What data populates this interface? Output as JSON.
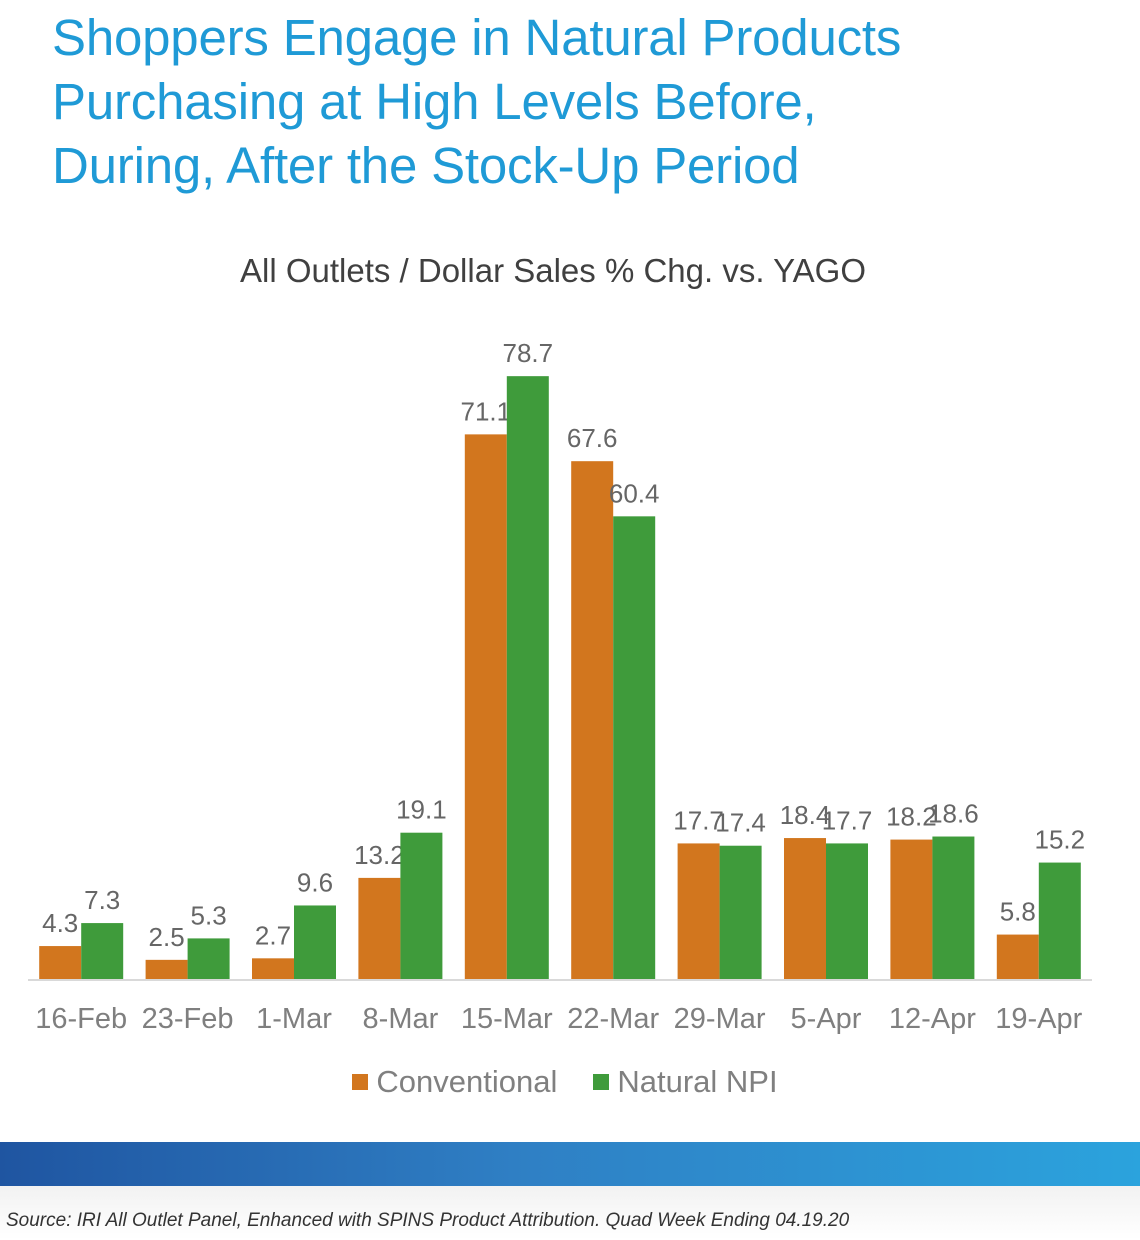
{
  "title_lines": [
    "Shoppers Engage in Natural Products",
    "Purchasing at High Levels Before,",
    "During, After the Stock-Up Period"
  ],
  "colors": {
    "title": "#1f9ad6",
    "conventional": "#d2761e",
    "natural": "#3f9b3b",
    "band": "#2a7cc2"
  },
  "chart_data": {
    "type": "bar",
    "title": "All Outlets / Dollar Sales % Chg. vs. YAGO",
    "xlabel": "",
    "ylabel": "",
    "ylim": [
      0,
      85
    ],
    "grid": false,
    "legend_position": "bottom",
    "categories": [
      "16-Feb",
      "23-Feb",
      "1-Mar",
      "8-Mar",
      "15-Mar",
      "22-Mar",
      "29-Mar",
      "5-Apr",
      "12-Apr",
      "19-Apr"
    ],
    "series": [
      {
        "name": "Conventional",
        "color": "#d2761e",
        "values": [
          4.3,
          2.5,
          2.7,
          13.2,
          71.1,
          67.6,
          17.7,
          18.4,
          18.2,
          5.8
        ]
      },
      {
        "name": "Natural NPI",
        "color": "#3f9b3b",
        "values": [
          7.3,
          5.3,
          9.6,
          19.1,
          78.7,
          60.4,
          17.4,
          17.7,
          18.6,
          15.2
        ]
      }
    ]
  },
  "source": "Source: IRI All Outlet Panel, Enhanced with SPINS Product Attribution. Quad Week Ending 04.19.20"
}
